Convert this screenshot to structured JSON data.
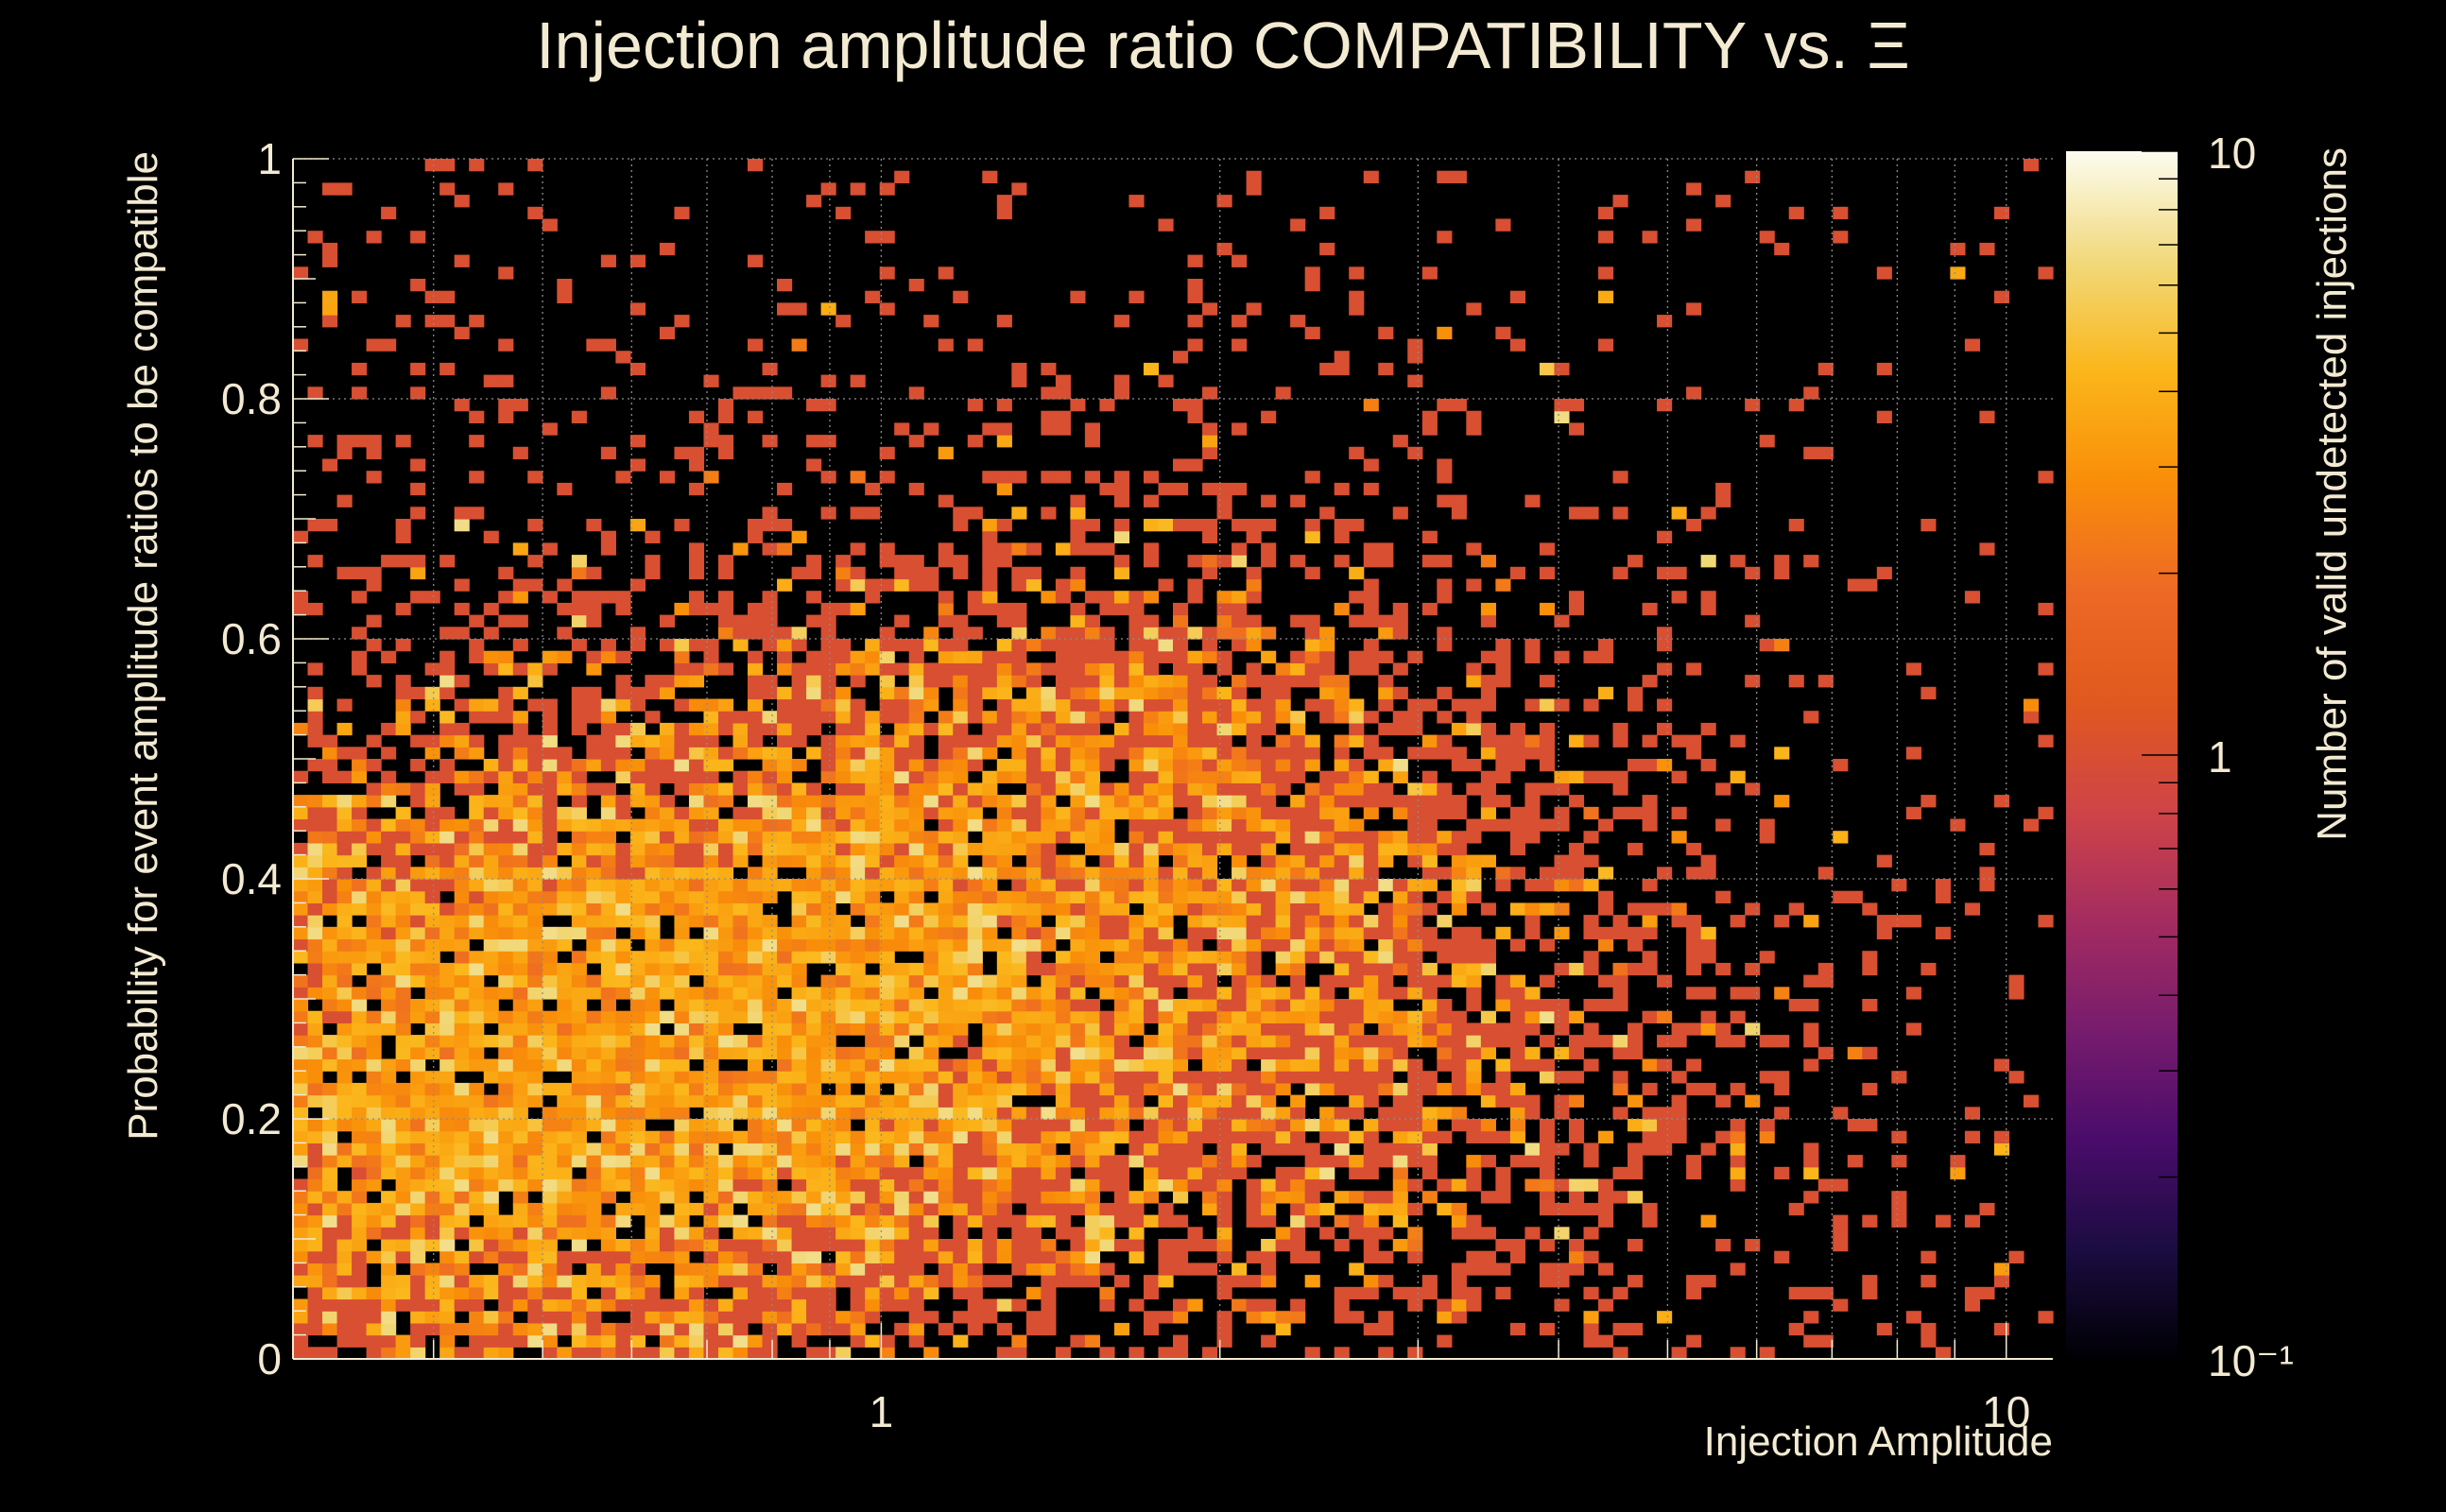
{
  "chart_data": {
    "type": "heatmap",
    "title": "Injection amplitude ratio COMPATIBILITY vs.  Ξ",
    "xlabel": "Injection Amplitude",
    "ylabel": "Probability for event amplitude ratios to be compatible",
    "zlabel": "Number of valid undetected injections",
    "x_scale": "log",
    "z_scale": "log",
    "xlim": [
      0.3,
      11
    ],
    "ylim": [
      0,
      1
    ],
    "zlim": [
      0.1,
      10
    ],
    "grid": true,
    "x_tick_labels": [
      {
        "value": 1,
        "label": "1"
      },
      {
        "value": 10,
        "label": "10"
      }
    ],
    "y_tick_labels": [
      {
        "value": 0,
        "label": "0"
      },
      {
        "value": 0.2,
        "label": "0.2"
      },
      {
        "value": 0.4,
        "label": "0.4"
      },
      {
        "value": 0.6,
        "label": "0.6"
      },
      {
        "value": 0.8,
        "label": "0.8"
      },
      {
        "value": 1,
        "label": "1"
      }
    ],
    "z_tick_labels": [
      {
        "value": 10,
        "label": "10"
      },
      {
        "value": 1,
        "label": "1"
      },
      {
        "value": 0.1,
        "label": "10⁻¹"
      }
    ],
    "density_peaks": [
      {
        "x": 0.35,
        "y": 0.25,
        "weight": 1.0
      },
      {
        "x": 0.55,
        "y": 0.2,
        "weight": 0.95
      },
      {
        "x": 0.8,
        "y": 0.28,
        "weight": 0.85
      },
      {
        "x": 1.3,
        "y": 0.45,
        "weight": 0.6
      },
      {
        "x": 1.8,
        "y": 0.4,
        "weight": 0.55
      },
      {
        "x": 3.0,
        "y": 0.2,
        "weight": 0.4
      }
    ],
    "colors": {
      "background": "#000000",
      "text": "#f3ead2",
      "grid": "#8c8c8c",
      "colormap": [
        "#000004",
        "#1b0c41",
        "#4a0c6b",
        "#781c6d",
        "#a52c60",
        "#cf4446",
        "#e0591e",
        "#ed6925",
        "#f98e09",
        "#fbb61a",
        "#f1d97b",
        "#fcfcf0"
      ]
    }
  }
}
